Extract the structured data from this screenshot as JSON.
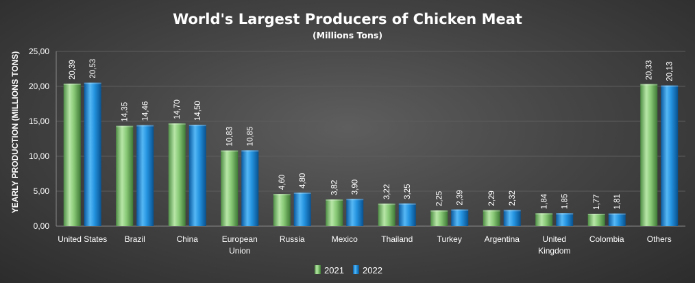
{
  "chart_data": {
    "type": "bar",
    "title": "World's Largest Producers of Chicken Meat",
    "subtitle": "(Millions Tons)",
    "xlabel": "",
    "ylabel": "YEARLY PRODUCTION (MILLIONS TONS)",
    "ylim": [
      0,
      25
    ],
    "yticks": [
      "0,00",
      "5,00",
      "10,00",
      "15,00",
      "20,00",
      "25,00"
    ],
    "grid": true,
    "legend_position": "bottom",
    "categories": [
      [
        "United States"
      ],
      [
        "Brazil"
      ],
      [
        "China"
      ],
      [
        "European",
        "Union"
      ],
      [
        "Russia"
      ],
      [
        "Mexico"
      ],
      [
        "Thailand"
      ],
      [
        "Turkey"
      ],
      [
        "Argentina"
      ],
      [
        "United",
        "Kingdom"
      ],
      [
        "Colombia"
      ],
      [
        "Others"
      ]
    ],
    "series": [
      {
        "name": "2021",
        "color": "#7bc36a",
        "values": [
          20.39,
          14.35,
          14.7,
          10.83,
          4.6,
          3.82,
          3.22,
          2.25,
          2.29,
          1.84,
          1.77,
          20.33
        ],
        "labels": [
          "20,39",
          "14,35",
          "14,70",
          "10,83",
          "4,60",
          "3,82",
          "3,22",
          "2,25",
          "2,29",
          "1,84",
          "1,77",
          "20,33"
        ]
      },
      {
        "name": "2022",
        "color": "#1f8fd8",
        "values": [
          20.53,
          14.46,
          14.5,
          10.85,
          4.8,
          3.9,
          3.25,
          2.39,
          2.32,
          1.85,
          1.81,
          20.13
        ],
        "labels": [
          "20,53",
          "14,46",
          "14,50",
          "10,85",
          "4,80",
          "3,90",
          "3,25",
          "2,39",
          "2,32",
          "1,85",
          "1,81",
          "20,13"
        ]
      }
    ]
  }
}
